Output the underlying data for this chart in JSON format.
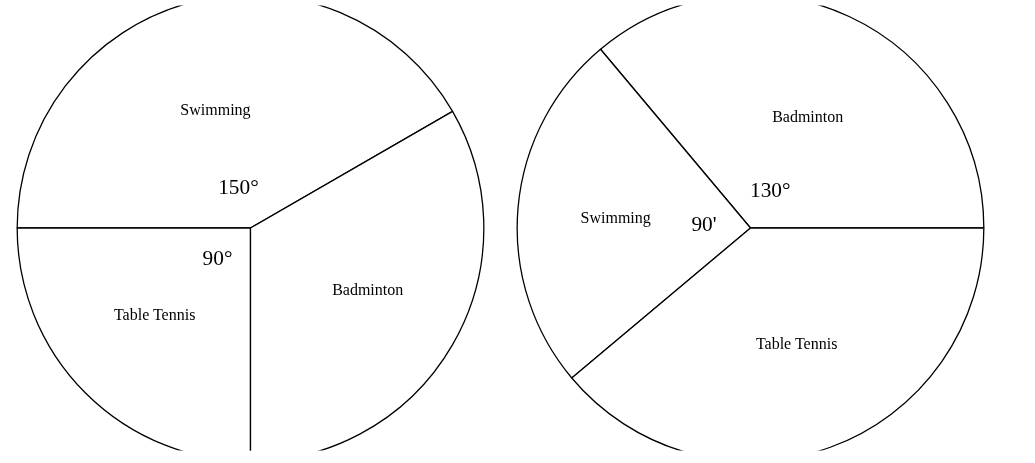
{
  "chart_data": [
    {
      "type": "pie",
      "categories": [
        "Swimming",
        "Table Tennis",
        "Badminton"
      ],
      "values": [
        150,
        90,
        120
      ],
      "colors": [
        "#ffffff",
        "#ffffff",
        "#ffffff"
      ],
      "value_labels": [
        "150°",
        "90°",
        null
      ]
    },
    {
      "type": "pie",
      "categories": [
        "Badminton",
        "Swimming",
        "Table Tennis"
      ],
      "values": [
        130,
        90,
        140
      ],
      "colors": [
        "#ffffff",
        "#ffffff",
        "#ffffff"
      ],
      "value_labels": [
        "130°",
        "90'",
        null
      ]
    }
  ]
}
